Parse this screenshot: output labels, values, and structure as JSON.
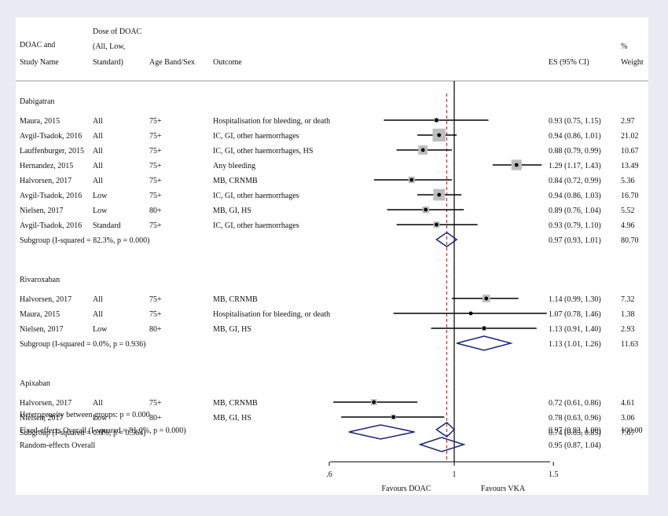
{
  "colors": {
    "background": "#eaeaf2",
    "panel": "#ffffff",
    "ci_line": "#000000",
    "weight_box": "#bdbdbd",
    "diamond": "#1a237e",
    "overall_line": "#b22222",
    "null_line": "#000000"
  },
  "header": {
    "study_line1": "DOAC and",
    "study_line2": "Study Name",
    "dose_line1": "Dose of DOAC",
    "dose_line2": "(All, Low,",
    "dose_line3": "Standard)",
    "age": "Age Band/Sex",
    "outcome": "Outcome",
    "es": "ES (95% CI)",
    "weight_line1": "%",
    "weight_line2": "Weight"
  },
  "chart_data": {
    "type": "forest",
    "x_axis_ticks": [
      ".6",
      "1",
      "1.5"
    ],
    "x_axis_tick_values": [
      0.6,
      1.0,
      1.5
    ],
    "x_axis_scale": "log",
    "null_value": 1.0,
    "overall_estimate": 0.97,
    "favours_left": "Favours DOAC",
    "favours_right": "Favours VKA",
    "groups": [
      {
        "name": "Dabigatran",
        "studies": [
          {
            "study": "Maura, 2015",
            "dose": "All",
            "age": "75+",
            "outcome": "Hospitalisation for bleeding, or death",
            "es": 0.93,
            "lo": 0.75,
            "hi": 1.15,
            "ci_text": "0.93 (0.75, 1.15)",
            "weight": 2.97,
            "weight_text": "2.97"
          },
          {
            "study": "Avgil-Tsadok, 2016",
            "dose": "All",
            "age": "75+",
            "outcome": "IC, GI, other haemorrhages",
            "es": 0.94,
            "lo": 0.86,
            "hi": 1.01,
            "ci_text": "0.94 (0.86, 1.01)",
            "weight": 21.02,
            "weight_text": "21.02"
          },
          {
            "study": "Lauffenburger, 2015",
            "dose": "All",
            "age": "75+",
            "outcome": "IC, GI, other haemorrhages, HS",
            "es": 0.88,
            "lo": 0.79,
            "hi": 0.99,
            "ci_text": "0.88 (0.79, 0.99)",
            "weight": 10.67,
            "weight_text": "10.67"
          },
          {
            "study": "Hernandez, 2015",
            "dose": "All",
            "age": "75+",
            "outcome": "Any bleeding",
            "es": 1.29,
            "lo": 1.17,
            "hi": 1.43,
            "ci_text": "1.29 (1.17, 1.43)",
            "weight": 13.49,
            "weight_text": "13.49"
          },
          {
            "study": "Halvorsen, 2017",
            "dose": "All",
            "age": "75+",
            "outcome": "MB, CRNMB",
            "es": 0.84,
            "lo": 0.72,
            "hi": 0.99,
            "ci_text": "0.84 (0.72, 0.99)",
            "weight": 5.36,
            "weight_text": "5.36"
          },
          {
            "study": "Avgil-Tsadok, 2016",
            "dose": "Low",
            "age": "75+",
            "outcome": "IC, GI, other haemorrhages",
            "es": 0.94,
            "lo": 0.86,
            "hi": 1.03,
            "ci_text": "0.94 (0.86, 1.03)",
            "weight": 16.7,
            "weight_text": "16.70"
          },
          {
            "study": "Nielsen, 2017",
            "dose": "Low",
            "age": "80+",
            "outcome": "MB, GI, HS",
            "es": 0.89,
            "lo": 0.76,
            "hi": 1.04,
            "ci_text": "0.89 (0.76, 1.04)",
            "weight": 5.52,
            "weight_text": "5.52"
          },
          {
            "study": "Avgil-Tsadok, 2016",
            "dose": "Standard",
            "age": "75+",
            "outcome": "IC, GI, other haemorrhages",
            "es": 0.93,
            "lo": 0.79,
            "hi": 1.1,
            "ci_text": "0.93 (0.79, 1.10)",
            "weight": 4.96,
            "weight_text": "4.96"
          }
        ],
        "subgroup": {
          "label": "Subgroup (I-squared = 82.3%, p = 0.000)",
          "es": 0.97,
          "lo": 0.93,
          "hi": 1.01,
          "ci_text": "0.97 (0.93, 1.01)",
          "weight_text": "80.70"
        }
      },
      {
        "name": "Rivaroxaban",
        "studies": [
          {
            "study": "Halvorsen, 2017",
            "dose": "All",
            "age": "75+",
            "outcome": "MB, CRNMB",
            "es": 1.14,
            "lo": 0.99,
            "hi": 1.3,
            "ci_text": "1.14 (0.99, 1.30)",
            "weight": 7.32,
            "weight_text": "7.32"
          },
          {
            "study": "Maura, 2015",
            "dose": "All",
            "age": "75+",
            "outcome": "Hospitalisation for bleeding, or death",
            "es": 1.07,
            "lo": 0.78,
            "hi": 1.46,
            "ci_text": "1.07 (0.78, 1.46)",
            "weight": 1.38,
            "weight_text": "1.38"
          },
          {
            "study": "Nielsen, 2017",
            "dose": "Low",
            "age": "80+",
            "outcome": "MB, GI, HS",
            "es": 1.13,
            "lo": 0.91,
            "hi": 1.4,
            "ci_text": "1.13 (0.91, 1.40)",
            "weight": 2.93,
            "weight_text": "2.93"
          }
        ],
        "subgroup": {
          "label": "Subgroup (I-squared = 0.0%, p = 0.936)",
          "es": 1.13,
          "lo": 1.01,
          "hi": 1.26,
          "ci_text": "1.13 (1.01, 1.26)",
          "weight_text": "11.63"
        }
      },
      {
        "name": "Apixaban",
        "studies": [
          {
            "study": "Halvorsen, 2017",
            "dose": "All",
            "age": "75+",
            "outcome": "MB, CRNMB",
            "es": 0.72,
            "lo": 0.61,
            "hi": 0.86,
            "ci_text": "0.72 (0.61, 0.86)",
            "weight": 4.61,
            "weight_text": "4.61"
          },
          {
            "study": "Nielsen, 2017",
            "dose": "Low",
            "age": "80+",
            "outcome": "MB, GI, HS",
            "es": 0.78,
            "lo": 0.63,
            "hi": 0.96,
            "ci_text": "0.78 (0.63, 0.96)",
            "weight": 3.06,
            "weight_text": "3.06"
          }
        ],
        "subgroup": {
          "label": "Subgroup (I-squared = 0.0%, p = 0.564)",
          "es": 0.74,
          "lo": 0.65,
          "hi": 0.85,
          "ci_text": "0.74 (0.65, 0.85)",
          "weight_text": "7.67"
        }
      }
    ],
    "heterogeneity": "Heterogeneity between groups: p = 0.000",
    "fixed_overall": {
      "label": "Fixed-effects Overall (I-squared = 81.0%, p = 0.000)",
      "es": 0.97,
      "lo": 0.93,
      "hi": 1.0,
      "ci_text": "0.97 (0.93, 1.00)",
      "weight_text": "100.00"
    },
    "random_overall": {
      "label": "Random-effects Overall",
      "es": 0.95,
      "lo": 0.87,
      "hi": 1.04,
      "ci_text": "0.95 (0.87, 1.04)",
      "weight_text": ""
    }
  }
}
